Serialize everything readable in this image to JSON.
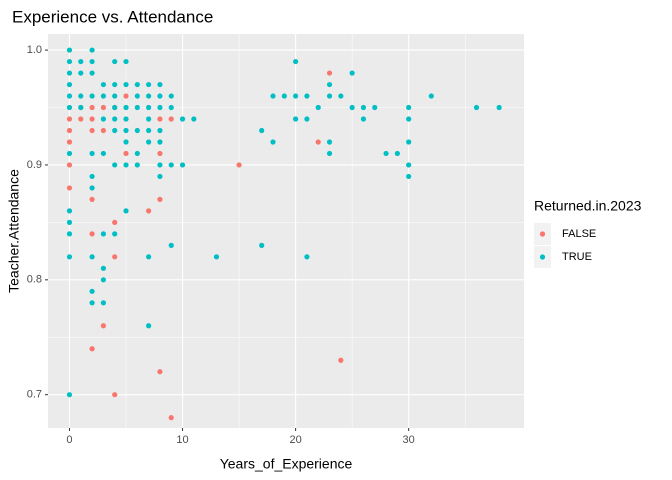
{
  "chart_data": {
    "type": "scatter",
    "title": "Experience vs. Attendance",
    "x_label": "Years_of_Experience",
    "y_label": "Teacher.Attendance",
    "legend_title": "Returned.in.2023",
    "legend_position": "right",
    "grid": true,
    "xlim": [
      -1.9,
      40.2
    ],
    "ylim": [
      0.671,
      1.014
    ],
    "xticks": [
      0,
      10,
      20,
      30
    ],
    "yticks": [
      0.7,
      0.8,
      0.9,
      {
        "value": 1,
        "label": "1.0"
      }
    ],
    "series": [
      {
        "name": "FALSE",
        "color": "#F8766D",
        "x": [
          0,
          0,
          0,
          0,
          0,
          1,
          1,
          2,
          2,
          2,
          2,
          2,
          2,
          3,
          3,
          3,
          4,
          4,
          4,
          4,
          5,
          5,
          7,
          8,
          8,
          8,
          8,
          9,
          9,
          15,
          22,
          23,
          24
        ],
        "values": [
          0.94,
          0.93,
          0.92,
          0.9,
          0.88,
          0.95,
          0.94,
          0.95,
          0.94,
          0.93,
          0.87,
          0.84,
          0.74,
          0.95,
          0.93,
          0.76,
          0.95,
          0.85,
          0.82,
          0.7,
          0.96,
          0.91,
          0.86,
          0.94,
          0.91,
          0.87,
          0.72,
          0.94,
          0.68,
          0.9,
          0.92,
          0.98,
          0.73
        ]
      },
      {
        "name": "TRUE",
        "color": "#00BFC4",
        "x": [
          0,
          0,
          0,
          0,
          0,
          0,
          0,
          0,
          0,
          0,
          0,
          0,
          1,
          1,
          1,
          1,
          2,
          2,
          2,
          2,
          2,
          2,
          2,
          2,
          2,
          2,
          3,
          3,
          3,
          3,
          3,
          3,
          3,
          3,
          4,
          4,
          4,
          4,
          4,
          4,
          4,
          4,
          5,
          5,
          5,
          5,
          5,
          5,
          5,
          5,
          6,
          6,
          6,
          6,
          6,
          6,
          7,
          7,
          7,
          7,
          7,
          7,
          7,
          7,
          8,
          8,
          8,
          8,
          8,
          8,
          8,
          9,
          9,
          9,
          9,
          10,
          10,
          11,
          13,
          17,
          17,
          18,
          18,
          19,
          20,
          20,
          20,
          21,
          21,
          21,
          22,
          23,
          23,
          23,
          23,
          24,
          25,
          25,
          26,
          26,
          27,
          28,
          29,
          30,
          30,
          30,
          30,
          30,
          32,
          36,
          38
        ],
        "values": [
          1.0,
          0.99,
          0.98,
          0.97,
          0.96,
          0.95,
          0.91,
          0.86,
          0.85,
          0.84,
          0.82,
          0.7,
          0.99,
          0.98,
          0.96,
          0.95,
          1.0,
          0.99,
          0.98,
          0.96,
          0.91,
          0.89,
          0.88,
          0.82,
          0.79,
          0.78,
          0.97,
          0.96,
          0.94,
          0.91,
          0.84,
          0.81,
          0.8,
          0.78,
          0.99,
          0.97,
          0.96,
          0.95,
          0.94,
          0.93,
          0.9,
          0.84,
          0.99,
          0.97,
          0.95,
          0.94,
          0.93,
          0.92,
          0.9,
          0.86,
          0.97,
          0.96,
          0.95,
          0.93,
          0.91,
          0.9,
          0.97,
          0.96,
          0.95,
          0.94,
          0.93,
          0.92,
          0.82,
          0.76,
          0.97,
          0.96,
          0.95,
          0.93,
          0.92,
          0.9,
          0.89,
          0.96,
          0.95,
          0.9,
          0.83,
          0.94,
          0.9,
          0.94,
          0.82,
          0.93,
          0.83,
          0.96,
          0.92,
          0.96,
          0.99,
          0.96,
          0.94,
          0.96,
          0.94,
          0.82,
          0.95,
          0.97,
          0.96,
          0.92,
          0.91,
          0.96,
          0.98,
          0.95,
          0.95,
          0.94,
          0.95,
          0.91,
          0.91,
          0.95,
          0.94,
          0.92,
          0.9,
          0.89,
          0.96,
          0.95,
          0.95
        ]
      }
    ]
  }
}
